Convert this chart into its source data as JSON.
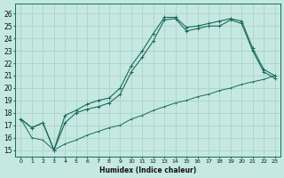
{
  "xlabel": "Humidex (Indice chaleur)",
  "x_ticks": [
    0,
    1,
    2,
    3,
    4,
    5,
    6,
    7,
    8,
    9,
    10,
    11,
    12,
    13,
    14,
    15,
    16,
    17,
    18,
    19,
    20,
    21,
    22,
    23
  ],
  "y_ticks": [
    15,
    16,
    17,
    18,
    19,
    20,
    21,
    22,
    23,
    24,
    25,
    26
  ],
  "xlim": [
    -0.5,
    23.5
  ],
  "ylim": [
    14.5,
    26.8
  ],
  "background_color": "#c5e8e0",
  "line_color": "#1a6b5a",
  "grid_color": "#a8cfc8",
  "line1_x": [
    0,
    1,
    2,
    3,
    4,
    5,
    6,
    7,
    8,
    9,
    10,
    11,
    12,
    13,
    14,
    15,
    16,
    17,
    18,
    19,
    20,
    21,
    22,
    23
  ],
  "line1_y": [
    17.5,
    16.8,
    17.2,
    15.0,
    17.2,
    18.0,
    18.3,
    18.5,
    18.8,
    19.5,
    21.3,
    22.5,
    23.8,
    25.5,
    25.6,
    24.6,
    24.8,
    25.0,
    25.0,
    25.5,
    25.2,
    23.0,
    21.3,
    20.8
  ],
  "line2_x": [
    0,
    1,
    2,
    3,
    4,
    5,
    6,
    7,
    8,
    9,
    10,
    11,
    12,
    13,
    14,
    15,
    16,
    17,
    18,
    19,
    20,
    21,
    22,
    23
  ],
  "line2_y": [
    17.5,
    16.8,
    17.2,
    15.0,
    17.8,
    18.2,
    18.7,
    19.0,
    19.2,
    20.0,
    21.8,
    23.0,
    24.4,
    25.7,
    25.7,
    24.9,
    25.0,
    25.2,
    25.4,
    25.6,
    25.4,
    23.2,
    21.5,
    21.0
  ],
  "line3_x": [
    0,
    1,
    2,
    3,
    4,
    5,
    6,
    7,
    8,
    9,
    10,
    11,
    12,
    13,
    14,
    15,
    16,
    17,
    18,
    19,
    20,
    21,
    22,
    23
  ],
  "line3_y": [
    17.5,
    16.0,
    15.8,
    15.0,
    15.5,
    15.8,
    16.2,
    16.5,
    16.8,
    17.0,
    17.5,
    17.8,
    18.2,
    18.5,
    18.8,
    19.0,
    19.3,
    19.5,
    19.8,
    20.0,
    20.3,
    20.5,
    20.7,
    21.0
  ]
}
